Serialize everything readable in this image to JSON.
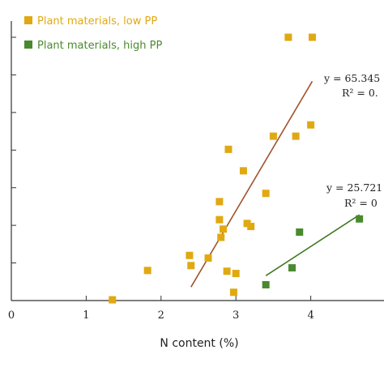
{
  "chart_data": {
    "type": "scatter",
    "xlabel": "N content (%)",
    "x_ticks": [
      "0",
      "1",
      "2",
      "3",
      "4"
    ],
    "xlim": [
      0,
      5
    ],
    "ylim": [
      0,
      7
    ],
    "grid": false,
    "legend_position": "top-left",
    "series": [
      {
        "name": "Plant materials, low PP",
        "color": "#E0A912",
        "points": [
          [
            1.35,
            0.02
          ],
          [
            1.82,
            0.8
          ],
          [
            2.38,
            1.2
          ],
          [
            2.4,
            0.93
          ],
          [
            2.63,
            1.13
          ],
          [
            2.78,
            2.63
          ],
          [
            2.78,
            2.15
          ],
          [
            2.8,
            1.68
          ],
          [
            2.83,
            1.9
          ],
          [
            2.88,
            0.78
          ],
          [
            2.9,
            4.02
          ],
          [
            2.97,
            0.22
          ],
          [
            3.0,
            0.72
          ],
          [
            3.1,
            3.45
          ],
          [
            3.15,
            2.05
          ],
          [
            3.2,
            1.97
          ],
          [
            3.4,
            2.85
          ],
          [
            3.5,
            4.37
          ],
          [
            3.7,
            7.0
          ],
          [
            3.8,
            4.37
          ],
          [
            4.0,
            4.67
          ],
          [
            4.02,
            7.0
          ]
        ],
        "trendline": {
          "x": [
            2.4,
            4.02
          ],
          "y": [
            0.36,
            5.83
          ],
          "color": "#A0522D",
          "equation": "y = 65.345",
          "r2": "R² = 0."
        }
      },
      {
        "name": "Plant materials, high PP",
        "color": "#4A8A2E",
        "points": [
          [
            3.4,
            0.42
          ],
          [
            3.75,
            0.87
          ],
          [
            3.85,
            1.82
          ],
          [
            4.65,
            2.17
          ]
        ],
        "trendline": {
          "x": [
            3.4,
            4.65
          ],
          "y": [
            0.66,
            2.28
          ],
          "color": "#3E7A22",
          "equation": "y = 25.721",
          "r2": "R² = 0"
        }
      }
    ]
  }
}
